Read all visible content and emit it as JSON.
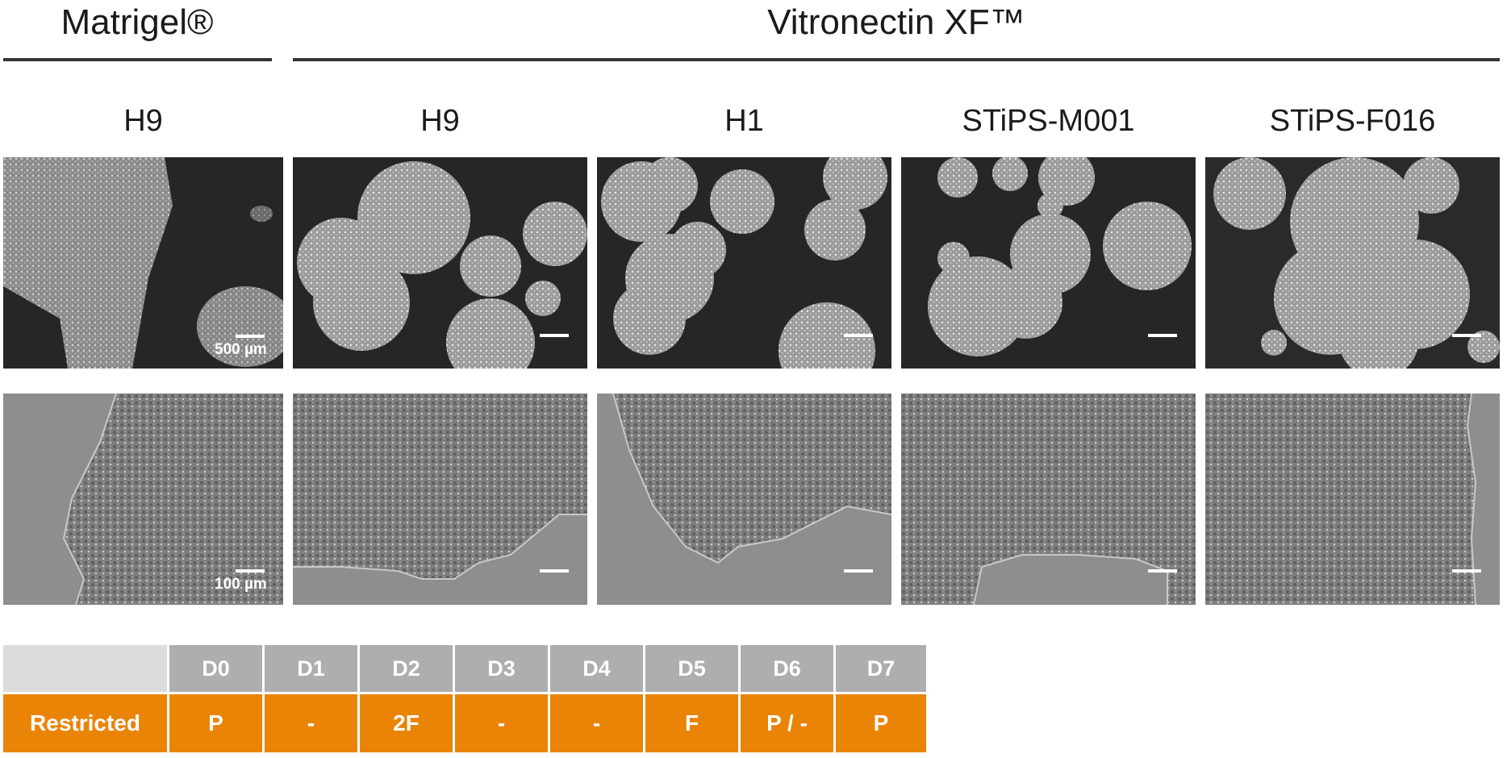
{
  "groups": {
    "matrigel": "Matrigel®",
    "vitronectin": "Vitronectin XF™"
  },
  "columns": [
    "H9",
    "H9",
    "H1",
    "STiPS-M001",
    "STiPS-F016"
  ],
  "scale_labels": {
    "top": "500 µm",
    "bottom": "100 µm"
  },
  "schedule": {
    "days": [
      "D0",
      "D1",
      "D2",
      "D3",
      "D4",
      "D5",
      "D6",
      "D7"
    ],
    "row_label": "Restricted",
    "values": [
      "P",
      "-",
      "2F",
      "-",
      "-",
      "F",
      "P / -",
      "P"
    ]
  },
  "colors": {
    "accent_orange": "#ea8406",
    "header_gray": "#aeaeae",
    "blank_gray": "#dcdcdc",
    "rule": "#333333"
  }
}
